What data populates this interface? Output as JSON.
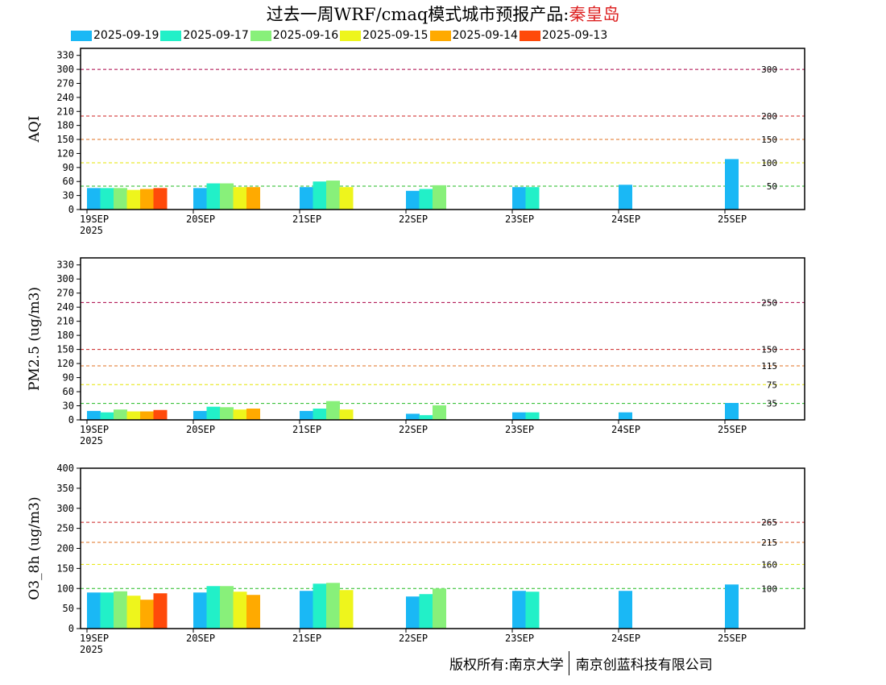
{
  "title": {
    "prefix": "过去一周WRF/cmaq模式城市预报产品:",
    "city": "秦皇岛"
  },
  "legend": [
    {
      "label": "2025-09-19",
      "color": "#1ab8f5"
    },
    {
      "label": "2025-09-17",
      "color": "#22f0c8"
    },
    {
      "label": "2025-09-16",
      "color": "#88f07a"
    },
    {
      "label": "2025-09-15",
      "color": "#eef51c"
    },
    {
      "label": "2025-09-14",
      "color": "#ffaa00"
    },
    {
      "label": "2025-09-13",
      "color": "#ff4a0a"
    }
  ],
  "footer": {
    "left": "版权所有:南京大学",
    "right": "南京创蓝科技有限公司"
  },
  "chart_data": [
    {
      "type": "bar",
      "ylabel": "AQI",
      "ylim": [
        0,
        345
      ],
      "yticks": [
        0,
        30,
        60,
        90,
        120,
        150,
        180,
        210,
        240,
        270,
        300,
        330
      ],
      "xticks": [
        "19SEP",
        "20SEP",
        "21SEP",
        "22SEP",
        "23SEP",
        "24SEP",
        "25SEP"
      ],
      "xsub": "2025",
      "grid": false,
      "thresholds": [
        {
          "value": 300,
          "label": "300",
          "color": "#aa0044"
        },
        {
          "value": 200,
          "label": "200",
          "color": "#cc2222"
        },
        {
          "value": 150,
          "label": "150",
          "color": "#e07020"
        },
        {
          "value": 100,
          "label": "100",
          "color": "#e6e600"
        },
        {
          "value": 50,
          "label": "50",
          "color": "#22bb22"
        }
      ],
      "days": [
        {
          "x": "19SEP",
          "values": [
            46,
            46,
            46,
            42,
            44,
            46
          ]
        },
        {
          "x": "20SEP",
          "values": [
            46,
            56,
            56,
            48,
            48,
            null
          ]
        },
        {
          "x": "21SEP",
          "values": [
            48,
            60,
            62,
            48,
            null,
            null
          ]
        },
        {
          "x": "22SEP",
          "values": [
            40,
            44,
            52,
            null,
            null,
            null
          ]
        },
        {
          "x": "23SEP",
          "values": [
            48,
            48,
            null,
            null,
            null,
            null
          ]
        },
        {
          "x": "24SEP",
          "values": [
            53,
            null,
            null,
            null,
            null,
            null
          ]
        },
        {
          "x": "25SEP",
          "values": [
            108,
            null,
            null,
            null,
            null,
            null
          ]
        }
      ]
    },
    {
      "type": "bar",
      "ylabel": "PM2.5 (ug/m3)",
      "ylim": [
        0,
        345
      ],
      "yticks": [
        0,
        30,
        60,
        90,
        120,
        150,
        180,
        210,
        240,
        270,
        300,
        330
      ],
      "xticks": [
        "19SEP",
        "20SEP",
        "21SEP",
        "22SEP",
        "23SEP",
        "24SEP",
        "25SEP"
      ],
      "xsub": "2025",
      "grid": false,
      "thresholds": [
        {
          "value": 250,
          "label": "250",
          "color": "#aa0044"
        },
        {
          "value": 150,
          "label": "150",
          "color": "#cc2222"
        },
        {
          "value": 115,
          "label": "115",
          "color": "#e07020"
        },
        {
          "value": 75,
          "label": "75",
          "color": "#e6e600"
        },
        {
          "value": 35,
          "label": "35",
          "color": "#22bb22"
        }
      ],
      "days": [
        {
          "x": "19SEP",
          "values": [
            19,
            16,
            22,
            18,
            18,
            21
          ]
        },
        {
          "x": "20SEP",
          "values": [
            19,
            28,
            27,
            22,
            24,
            null
          ]
        },
        {
          "x": "21SEP",
          "values": [
            19,
            24,
            40,
            22,
            null,
            null
          ]
        },
        {
          "x": "22SEP",
          "values": [
            13,
            10,
            31,
            null,
            null,
            null
          ]
        },
        {
          "x": "23SEP",
          "values": [
            16,
            16,
            null,
            null,
            null,
            null
          ]
        },
        {
          "x": "24SEP",
          "values": [
            16,
            null,
            null,
            null,
            null,
            null
          ]
        },
        {
          "x": "25SEP",
          "values": [
            36,
            null,
            null,
            null,
            null,
            null
          ]
        }
      ]
    },
    {
      "type": "bar",
      "ylabel": "O3_8h (ug/m3)",
      "ylim": [
        0,
        400
      ],
      "yticks": [
        0,
        50,
        100,
        150,
        200,
        250,
        300,
        350,
        400
      ],
      "xticks": [
        "19SEP",
        "20SEP",
        "21SEP",
        "22SEP",
        "23SEP",
        "24SEP",
        "25SEP"
      ],
      "xsub": "2025",
      "grid": false,
      "thresholds": [
        {
          "value": 265,
          "label": "265",
          "color": "#cc2222"
        },
        {
          "value": 215,
          "label": "215",
          "color": "#e07020"
        },
        {
          "value": 160,
          "label": "160",
          "color": "#e6e600"
        },
        {
          "value": 100,
          "label": "100",
          "color": "#22bb22"
        }
      ],
      "days": [
        {
          "x": "19SEP",
          "values": [
            90,
            90,
            93,
            82,
            72,
            88
          ]
        },
        {
          "x": "20SEP",
          "values": [
            90,
            106,
            106,
            92,
            84,
            null
          ]
        },
        {
          "x": "21SEP",
          "values": [
            94,
            112,
            114,
            96,
            null,
            null
          ]
        },
        {
          "x": "22SEP",
          "values": [
            80,
            86,
            100,
            null,
            null,
            null
          ]
        },
        {
          "x": "23SEP",
          "values": [
            94,
            92,
            null,
            null,
            null,
            null
          ]
        },
        {
          "x": "24SEP",
          "values": [
            94,
            null,
            null,
            null,
            null,
            null
          ]
        },
        {
          "x": "25SEP",
          "values": [
            110,
            null,
            null,
            null,
            null,
            null
          ]
        }
      ]
    }
  ]
}
